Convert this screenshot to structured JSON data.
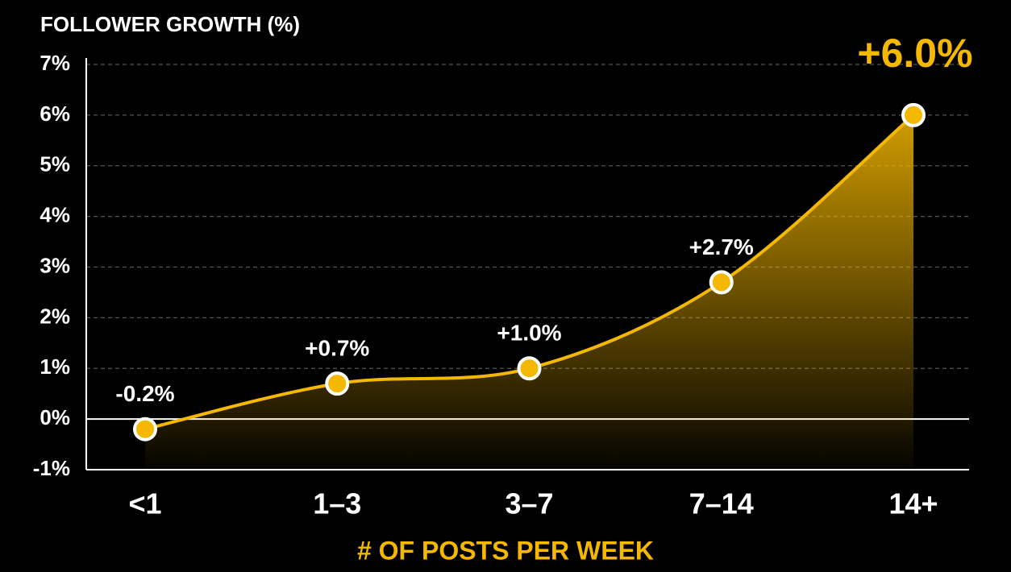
{
  "chart_data": {
    "type": "line",
    "title": "FOLLOWER GROWTH (%)",
    "x_label": "# OF POSTS PER WEEK",
    "categories": [
      "<1",
      "1–3",
      "3–7",
      "7–14",
      "14+"
    ],
    "values": [
      -0.2,
      0.7,
      1.0,
      2.7,
      6.0
    ],
    "value_labels": [
      "-0.2%",
      "+0.7%",
      "+1.0%",
      "+2.7%",
      "+6.0%"
    ],
    "color": "#f5b800",
    "ylim": [
      -1,
      7
    ],
    "yticks": [
      {
        "value": -1,
        "label": "-1%"
      },
      {
        "value": 0,
        "label": "0%"
      },
      {
        "value": 1,
        "label": "1%"
      },
      {
        "value": 2,
        "label": "2%"
      },
      {
        "value": 3,
        "label": "3%"
      },
      {
        "value": 4,
        "label": "4%"
      },
      {
        "value": 5,
        "label": "5%"
      },
      {
        "value": 6,
        "label": "6%"
      },
      {
        "value": 7,
        "label": "7%"
      }
    ],
    "grid": true
  }
}
